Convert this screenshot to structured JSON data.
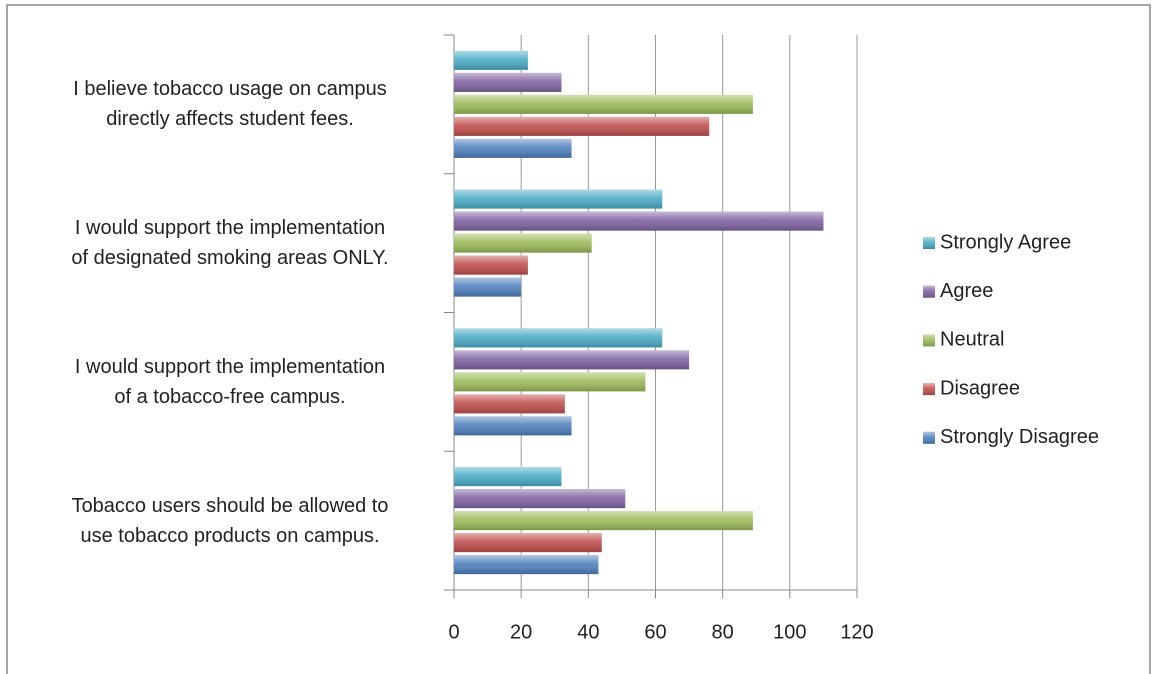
{
  "chart_data": {
    "type": "bar",
    "orientation": "horizontal",
    "categories": [
      "I believe tobacco usage on campus\ndirectly affects student fees.",
      "I would support the implementation\nof designated smoking areas ONLY.",
      "I would support the implementation\nof a tobacco-free campus.",
      "Tobacco users should be allowed to\nuse tobacco products on campus."
    ],
    "series": [
      {
        "name": "Strongly Disagree",
        "color": "#4f81bd",
        "values": [
          35,
          20,
          35,
          43
        ]
      },
      {
        "name": "Disagree",
        "color": "#c0504d",
        "values": [
          76,
          22,
          33,
          44
        ]
      },
      {
        "name": "Neutral",
        "color": "#9bbb59",
        "values": [
          89,
          41,
          57,
          89
        ]
      },
      {
        "name": "Agree",
        "color": "#8064a2",
        "values": [
          32,
          110,
          70,
          51
        ]
      },
      {
        "name": "Strongly Agree",
        "color": "#4bacc6",
        "values": [
          22,
          62,
          62,
          32
        ]
      }
    ],
    "xlim": [
      0,
      120
    ],
    "xticks": [
      0,
      20,
      40,
      60,
      80,
      100,
      120
    ],
    "grid": true,
    "legend": "right"
  }
}
